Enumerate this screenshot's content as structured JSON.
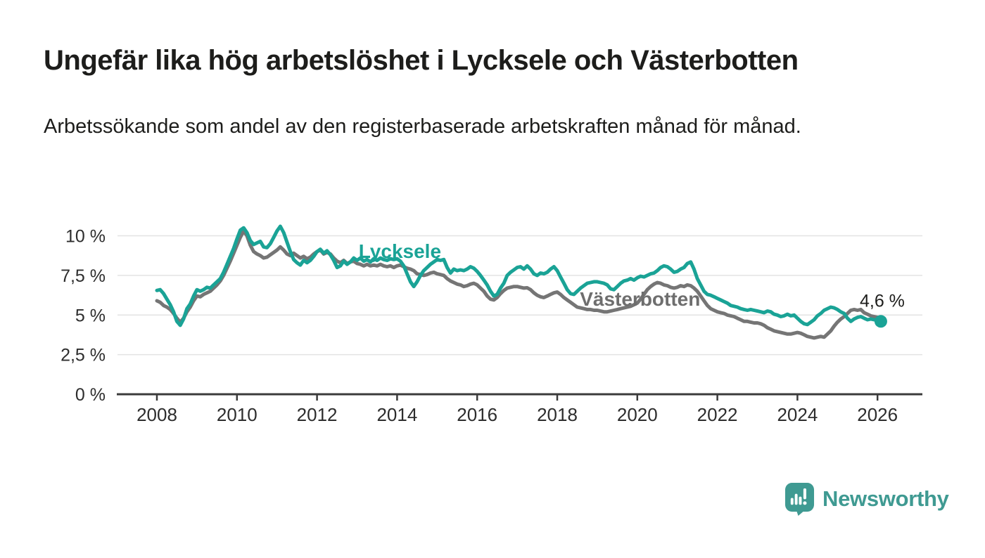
{
  "header": {
    "title": "Ungefär lika hög arbetslöshet i Lycksele och Västerbotten",
    "subtitle": "Arbetssökande som andel av den registerbaserade arbetskraften månad för månad."
  },
  "branding": {
    "logo_text": "Newsworthy",
    "logo_icon": "newsworthy-speech-bubble-with-bar-chart-and-exclamation",
    "logo_color": "#3f9a92"
  },
  "colors": {
    "accent_teal": "#1aa396",
    "series_gray": "#757575",
    "label_gray": "#6e6e6e",
    "gridline": "#e3e3e3",
    "axis": "#3b3b3b",
    "text_dark": "#1d1d1b",
    "tick_text": "#2d2d2d"
  },
  "chart_data": {
    "type": "line",
    "title": "Ungefär lika hög arbetslöshet i Lycksele och Västerbotten",
    "subtitle": "Arbetssökande som andel av den registerbaserade arbetskraften månad för månad.",
    "grid": "horizontal",
    "legend": "inline-labels",
    "x_axis": {
      "ticks": [
        2008,
        2010,
        2012,
        2014,
        2016,
        2018,
        2020,
        2022,
        2024,
        2026
      ],
      "tick_labels": [
        "2008",
        "2010",
        "2012",
        "2014",
        "2016",
        "2018",
        "2020",
        "2022",
        "2024",
        "2026"
      ],
      "range": [
        2007.0,
        2027.1
      ]
    },
    "y_axis": {
      "ticks": [
        0,
        2.5,
        5,
        7.5,
        10
      ],
      "tick_labels": [
        "0 %",
        "2,5 %",
        "5 %",
        "7,5 %",
        "10 %"
      ],
      "range": [
        0,
        11
      ],
      "unit": "%"
    },
    "annotation": {
      "text": "4,6 %",
      "series": "Lycksele",
      "at_last_point": true
    },
    "series": [
      {
        "name": "Västerbotten",
        "color": "#757575",
        "label_color": "#6e6e6e",
        "start_year": 2008,
        "frequency": "monthly",
        "end_dot": false,
        "label_anchor": {
          "x": 2020.07,
          "y": 6.03
        },
        "values": [
          5.9,
          5.8,
          5.6,
          5.5,
          5.35,
          5.1,
          4.8,
          4.55,
          4.8,
          5.2,
          5.5,
          5.9,
          6.2,
          6.15,
          6.3,
          6.4,
          6.5,
          6.7,
          6.9,
          7.15,
          7.5,
          7.95,
          8.4,
          8.9,
          9.4,
          9.9,
          10.3,
          10.0,
          9.4,
          9.0,
          8.85,
          8.75,
          8.6,
          8.65,
          8.8,
          8.95,
          9.1,
          9.3,
          9.1,
          8.85,
          8.75,
          8.9,
          8.75,
          8.6,
          8.7,
          8.55,
          8.65,
          8.85,
          9.0,
          9.1,
          8.85,
          8.95,
          8.85,
          8.6,
          8.4,
          8.3,
          8.45,
          8.25,
          8.35,
          8.4,
          8.25,
          8.2,
          8.1,
          8.2,
          8.1,
          8.15,
          8.1,
          8.2,
          8.1,
          8.05,
          8.1,
          8.0,
          8.1,
          8.15,
          8.05,
          7.95,
          7.9,
          7.8,
          7.6,
          7.55,
          7.5,
          7.55,
          7.65,
          7.7,
          7.6,
          7.55,
          7.5,
          7.3,
          7.15,
          7.05,
          6.95,
          6.9,
          6.8,
          6.85,
          6.95,
          7.0,
          6.9,
          6.7,
          6.5,
          6.2,
          6.0,
          5.95,
          6.1,
          6.35,
          6.55,
          6.7,
          6.75,
          6.8,
          6.8,
          6.75,
          6.7,
          6.72,
          6.6,
          6.4,
          6.25,
          6.15,
          6.1,
          6.2,
          6.3,
          6.4,
          6.45,
          6.3,
          6.1,
          5.95,
          5.8,
          5.65,
          5.5,
          5.45,
          5.4,
          5.35,
          5.35,
          5.3,
          5.3,
          5.25,
          5.2,
          5.2,
          5.25,
          5.3,
          5.35,
          5.4,
          5.45,
          5.5,
          5.55,
          5.65,
          5.75,
          6.0,
          6.3,
          6.6,
          6.8,
          6.95,
          7.05,
          7.0,
          6.9,
          6.85,
          6.75,
          6.7,
          6.75,
          6.85,
          6.8,
          6.9,
          6.85,
          6.7,
          6.5,
          6.2,
          5.9,
          5.6,
          5.4,
          5.3,
          5.2,
          5.15,
          5.1,
          5.0,
          4.95,
          4.9,
          4.8,
          4.7,
          4.6,
          4.6,
          4.55,
          4.5,
          4.5,
          4.45,
          4.35,
          4.2,
          4.1,
          4.0,
          3.95,
          3.9,
          3.85,
          3.8,
          3.8,
          3.85,
          3.9,
          3.85,
          3.75,
          3.65,
          3.6,
          3.55,
          3.6,
          3.65,
          3.6,
          3.8,
          4.0,
          4.3,
          4.55,
          4.75,
          4.9,
          5.1,
          5.3,
          5.35,
          5.3,
          5.35,
          5.15,
          5.05,
          4.95,
          4.9,
          4.85,
          4.8
        ]
      },
      {
        "name": "Lycksele",
        "color": "#1aa396",
        "label_color": "#1aa396",
        "start_year": 2008,
        "frequency": "monthly",
        "end_dot": true,
        "label_anchor": {
          "x": 2014.07,
          "y": 9.05
        },
        "values": [
          6.55,
          6.6,
          6.35,
          6.0,
          5.65,
          5.2,
          4.6,
          4.35,
          4.75,
          5.4,
          5.7,
          6.2,
          6.6,
          6.5,
          6.6,
          6.75,
          6.7,
          6.9,
          7.1,
          7.3,
          7.7,
          8.2,
          8.7,
          9.2,
          9.8,
          10.35,
          10.5,
          10.2,
          9.7,
          9.45,
          9.55,
          9.65,
          9.3,
          9.25,
          9.5,
          9.9,
          10.3,
          10.6,
          10.2,
          9.6,
          9.0,
          8.5,
          8.3,
          8.15,
          8.45,
          8.3,
          8.45,
          8.7,
          9.0,
          9.15,
          8.9,
          9.05,
          8.8,
          8.45,
          8.0,
          8.1,
          8.4,
          8.2,
          8.35,
          8.6,
          8.45,
          8.6,
          8.4,
          8.5,
          8.35,
          8.55,
          8.45,
          8.6,
          8.5,
          8.45,
          8.55,
          8.5,
          8.55,
          8.4,
          8.1,
          7.6,
          7.1,
          6.8,
          7.1,
          7.5,
          7.8,
          8.0,
          8.2,
          8.35,
          8.5,
          8.45,
          8.5,
          8.0,
          7.65,
          7.9,
          7.8,
          7.85,
          7.8,
          7.9,
          8.05,
          7.95,
          7.75,
          7.5,
          7.2,
          6.9,
          6.5,
          6.2,
          6.3,
          6.7,
          7.0,
          7.5,
          7.7,
          7.85,
          8.0,
          8.05,
          7.9,
          8.1,
          7.9,
          7.6,
          7.5,
          7.65,
          7.6,
          7.7,
          7.9,
          8.05,
          7.8,
          7.4,
          7.0,
          6.6,
          6.35,
          6.3,
          6.5,
          6.7,
          6.85,
          7.0,
          7.05,
          7.1,
          7.1,
          7.05,
          7.0,
          6.9,
          6.65,
          6.6,
          6.8,
          7.0,
          7.15,
          7.2,
          7.3,
          7.2,
          7.35,
          7.45,
          7.4,
          7.5,
          7.6,
          7.65,
          7.8,
          8.0,
          8.1,
          8.05,
          7.9,
          7.7,
          7.75,
          7.9,
          8.0,
          8.25,
          8.35,
          7.9,
          7.3,
          6.9,
          6.5,
          6.3,
          6.25,
          6.15,
          6.05,
          5.95,
          5.85,
          5.75,
          5.6,
          5.55,
          5.5,
          5.4,
          5.35,
          5.3,
          5.35,
          5.3,
          5.25,
          5.2,
          5.15,
          5.25,
          5.2,
          5.05,
          5.0,
          4.9,
          4.95,
          5.05,
          4.95,
          5.0,
          4.8,
          4.6,
          4.45,
          4.4,
          4.55,
          4.7,
          4.95,
          5.1,
          5.3,
          5.4,
          5.5,
          5.45,
          5.35,
          5.2,
          5.1,
          4.8,
          4.6,
          4.75,
          4.85,
          4.9,
          4.8,
          4.7,
          4.75,
          4.7,
          4.65,
          4.6
        ]
      }
    ]
  }
}
